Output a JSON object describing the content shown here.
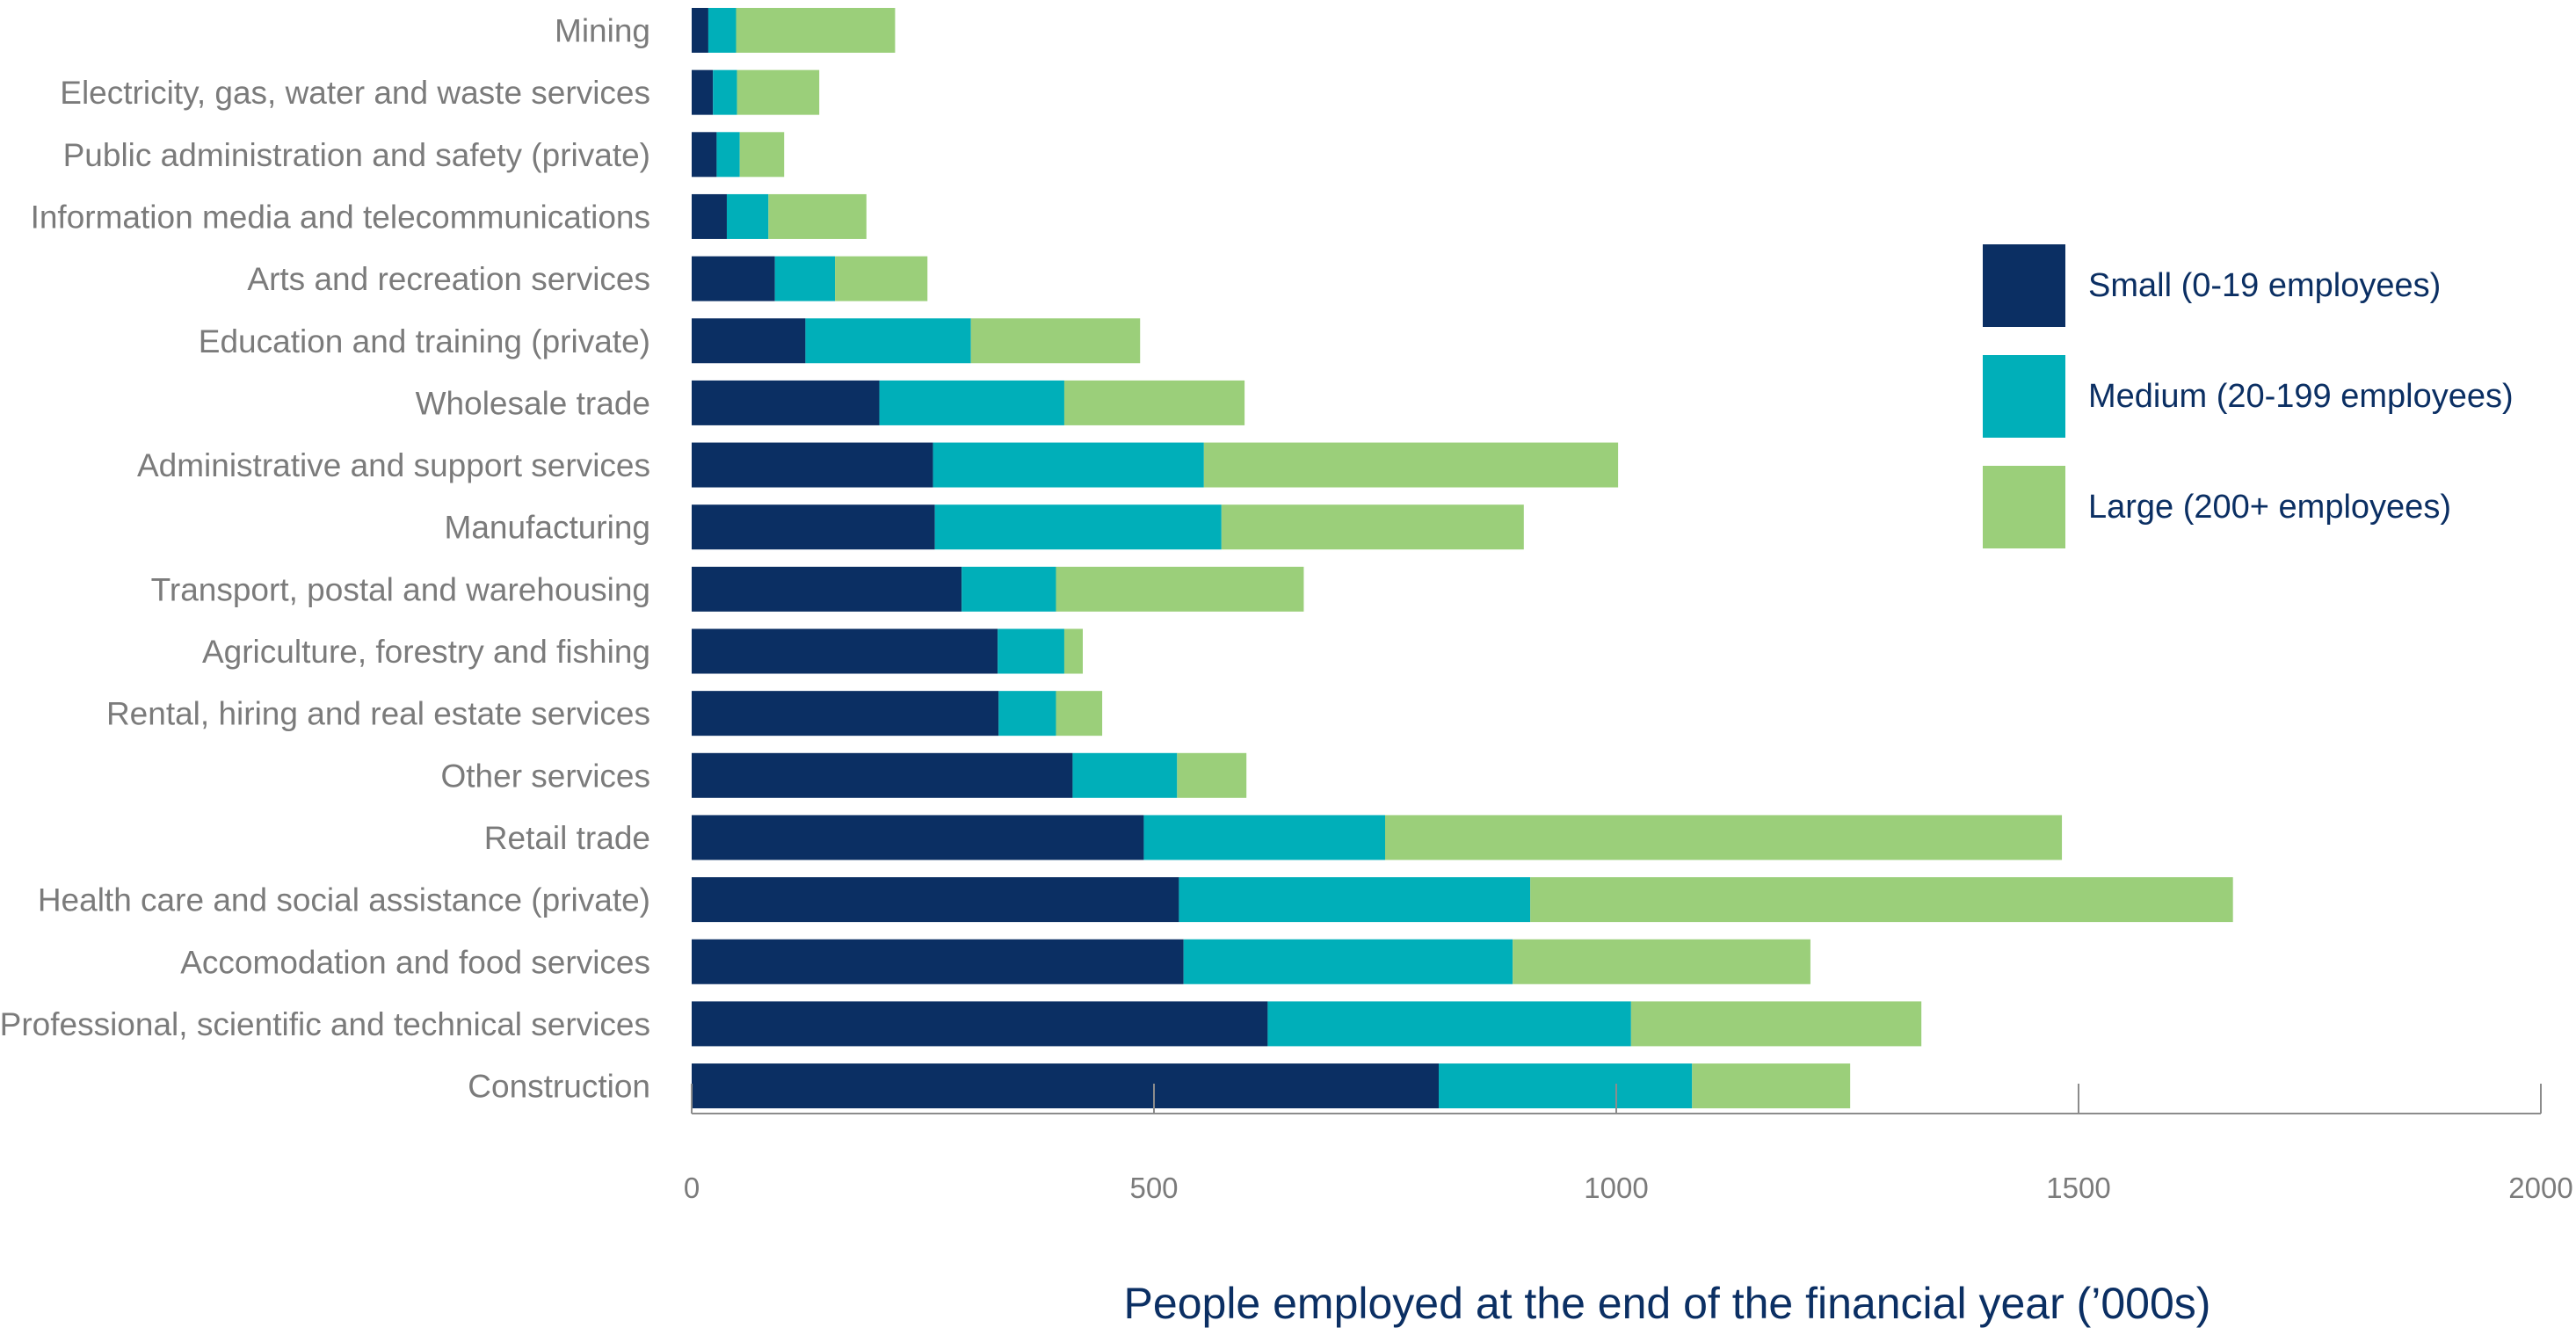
{
  "chart_data": {
    "type": "bar",
    "orientation": "horizontal",
    "stacked": true,
    "categories": [
      "Mining",
      "Electricity, gas, water and waste services",
      "Public administration and safety (private)",
      "Information media and telecommunications",
      "Arts and recreation services",
      "Education and training (private)",
      "Wholesale trade",
      "Administrative and support services",
      "Manufacturing",
      "Transport, postal and warehousing",
      "Agriculture, forestry and fishing",
      "Rental, hiring and real estate services",
      "Other services",
      "Retail trade",
      "Health care and social assistance (private)",
      "Accomodation and food services",
      "Professional, scientific and technical services",
      "Construction"
    ],
    "series": [
      {
        "name": "Small (0-19 employees)",
        "color": "#0b2f63",
        "values": [
          18,
          23,
          27,
          38,
          90,
          123,
          203,
          261,
          263,
          292,
          331,
          332,
          412,
          489,
          527,
          532,
          623,
          808
        ]
      },
      {
        "name": "Medium (20-199 employees)",
        "color": "#00afb9",
        "values": [
          30,
          26,
          25,
          45,
          65,
          179,
          200,
          293,
          310,
          102,
          72,
          62,
          113,
          261,
          380,
          356,
          393,
          274
        ]
      },
      {
        "name": "Large (200+ employees)",
        "color": "#9bcf7a",
        "values": [
          172,
          89,
          48,
          106,
          100,
          183,
          195,
          448,
          327,
          268,
          20,
          50,
          75,
          732,
          760,
          322,
          314,
          171
        ]
      }
    ],
    "xlabel": "People employed at the end of the financial year (’000s)",
    "ylabel": "",
    "title": "",
    "xlim": [
      0,
      2000
    ],
    "xticks": [
      "0",
      "500",
      "1000",
      "1500",
      "2000"
    ],
    "grid": false,
    "legend_position": "right"
  }
}
